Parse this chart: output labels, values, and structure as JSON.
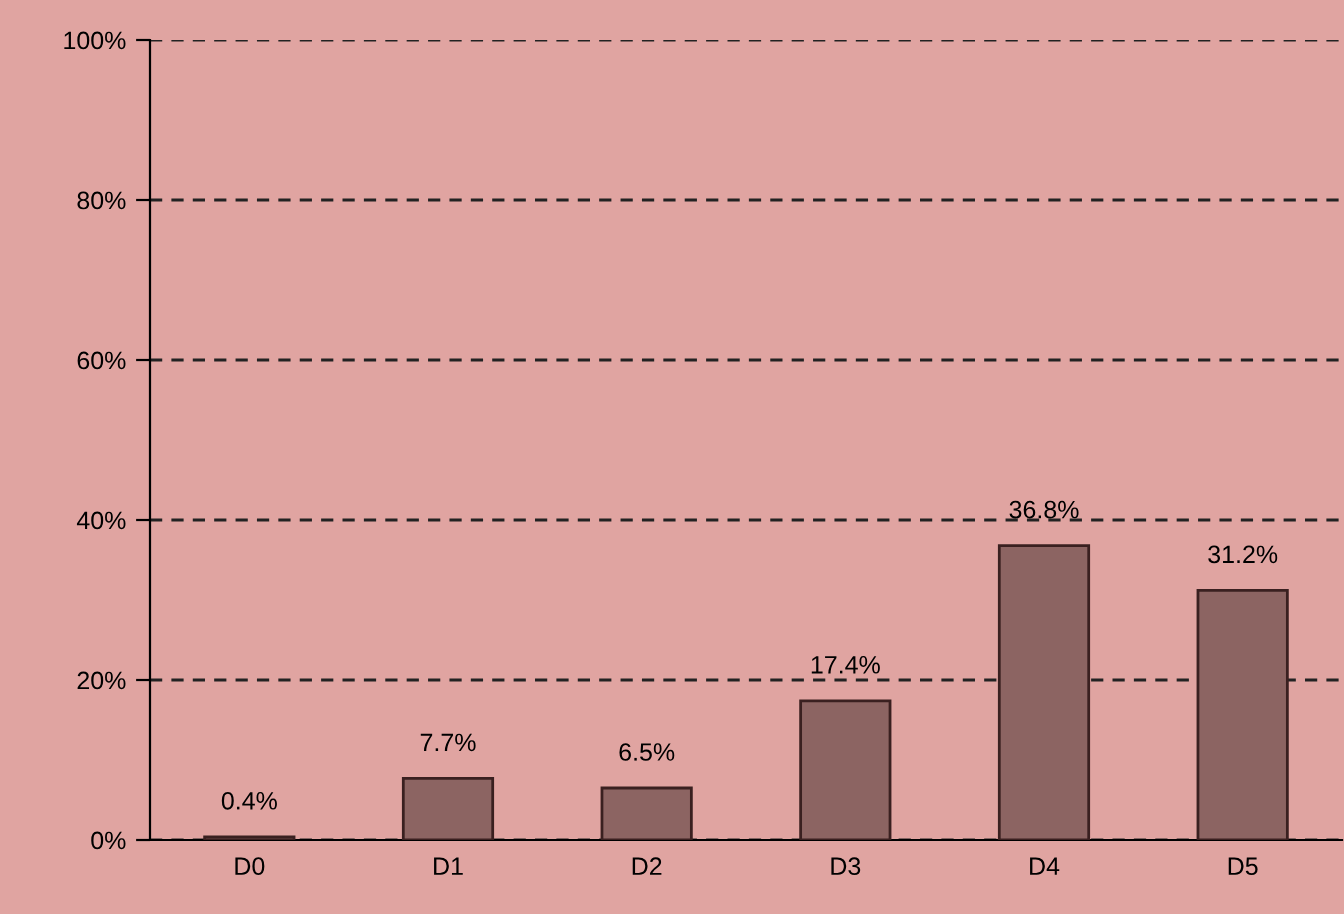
{
  "chart_data": {
    "type": "bar",
    "categories": [
      "D0",
      "D1",
      "D2",
      "D3",
      "D4",
      "D5"
    ],
    "values": [
      0.4,
      7.7,
      6.5,
      17.4,
      36.8,
      31.2
    ],
    "value_labels": [
      "0.4%",
      "7.7%",
      "6.5%",
      "17.4%",
      "36.8%",
      "31.2%"
    ],
    "color": "#8c6462",
    "ylim": [
      0,
      100
    ],
    "yticks": [
      {
        "value": 0,
        "label": "0%"
      },
      {
        "value": 20,
        "label": "20%"
      },
      {
        "value": 40,
        "label": "40%"
      },
      {
        "value": 60,
        "label": "60%"
      },
      {
        "value": 80,
        "label": "80%"
      },
      {
        "value": 100,
        "label": "100%"
      }
    ],
    "grid": "y",
    "legend": false
  }
}
